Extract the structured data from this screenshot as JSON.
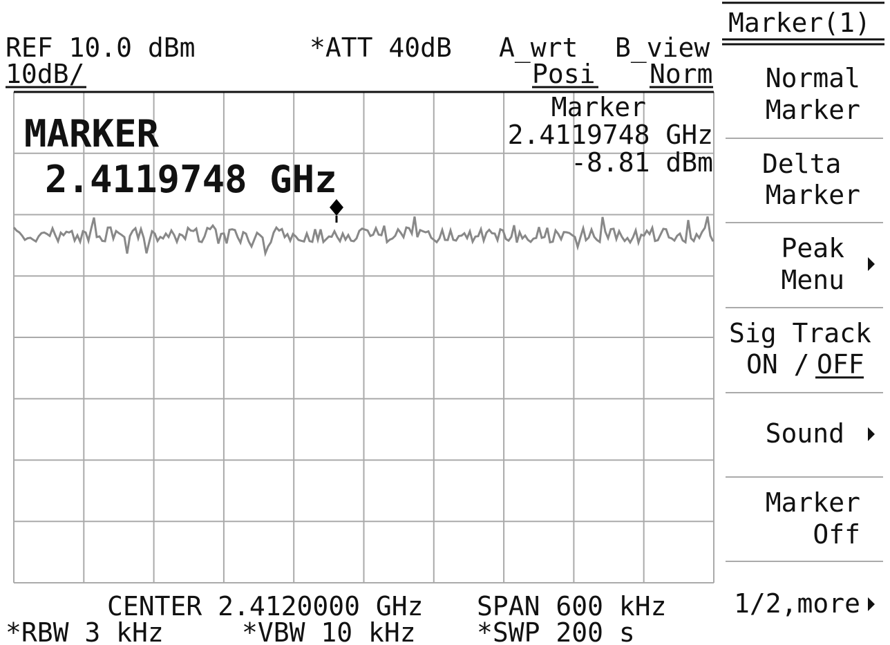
{
  "header": {
    "ref": "REF 10.0 dBm",
    "att": "*ATT 40dB",
    "a_trace": "A_wrt",
    "b_trace": "B_view",
    "scale": "10dB/",
    "a_mode": "Posi",
    "b_mode": "Norm"
  },
  "marker_readout": {
    "label": "Marker",
    "frequency": "2.4119748 GHz",
    "level": "-8.81 dBm"
  },
  "marker_big": {
    "label": "MARKER",
    "frequency": "2.4119748 GHz"
  },
  "footer": {
    "center": "CENTER 2.4120000 GHz",
    "span": "SPAN 600 kHz",
    "rbw": "*RBW 3 kHz",
    "vbw": "*VBW 10 kHz",
    "swp": "*SWP 200 s"
  },
  "menu": {
    "title": "Marker(1)",
    "items": [
      {
        "lines": [
          "Normal",
          "Marker"
        ]
      },
      {
        "lines": [
          "Delta",
          "Marker"
        ]
      },
      {
        "lines": [
          "Peak",
          "Menu"
        ]
      },
      {
        "lines": [
          "Sig Track",
          "ON /",
          "OFF"
        ]
      },
      {
        "lines": [
          "Sound"
        ]
      },
      {
        "lines": [
          "Marker",
          "Off"
        ]
      },
      {
        "lines": [
          "1/2,more"
        ]
      }
    ]
  }
}
